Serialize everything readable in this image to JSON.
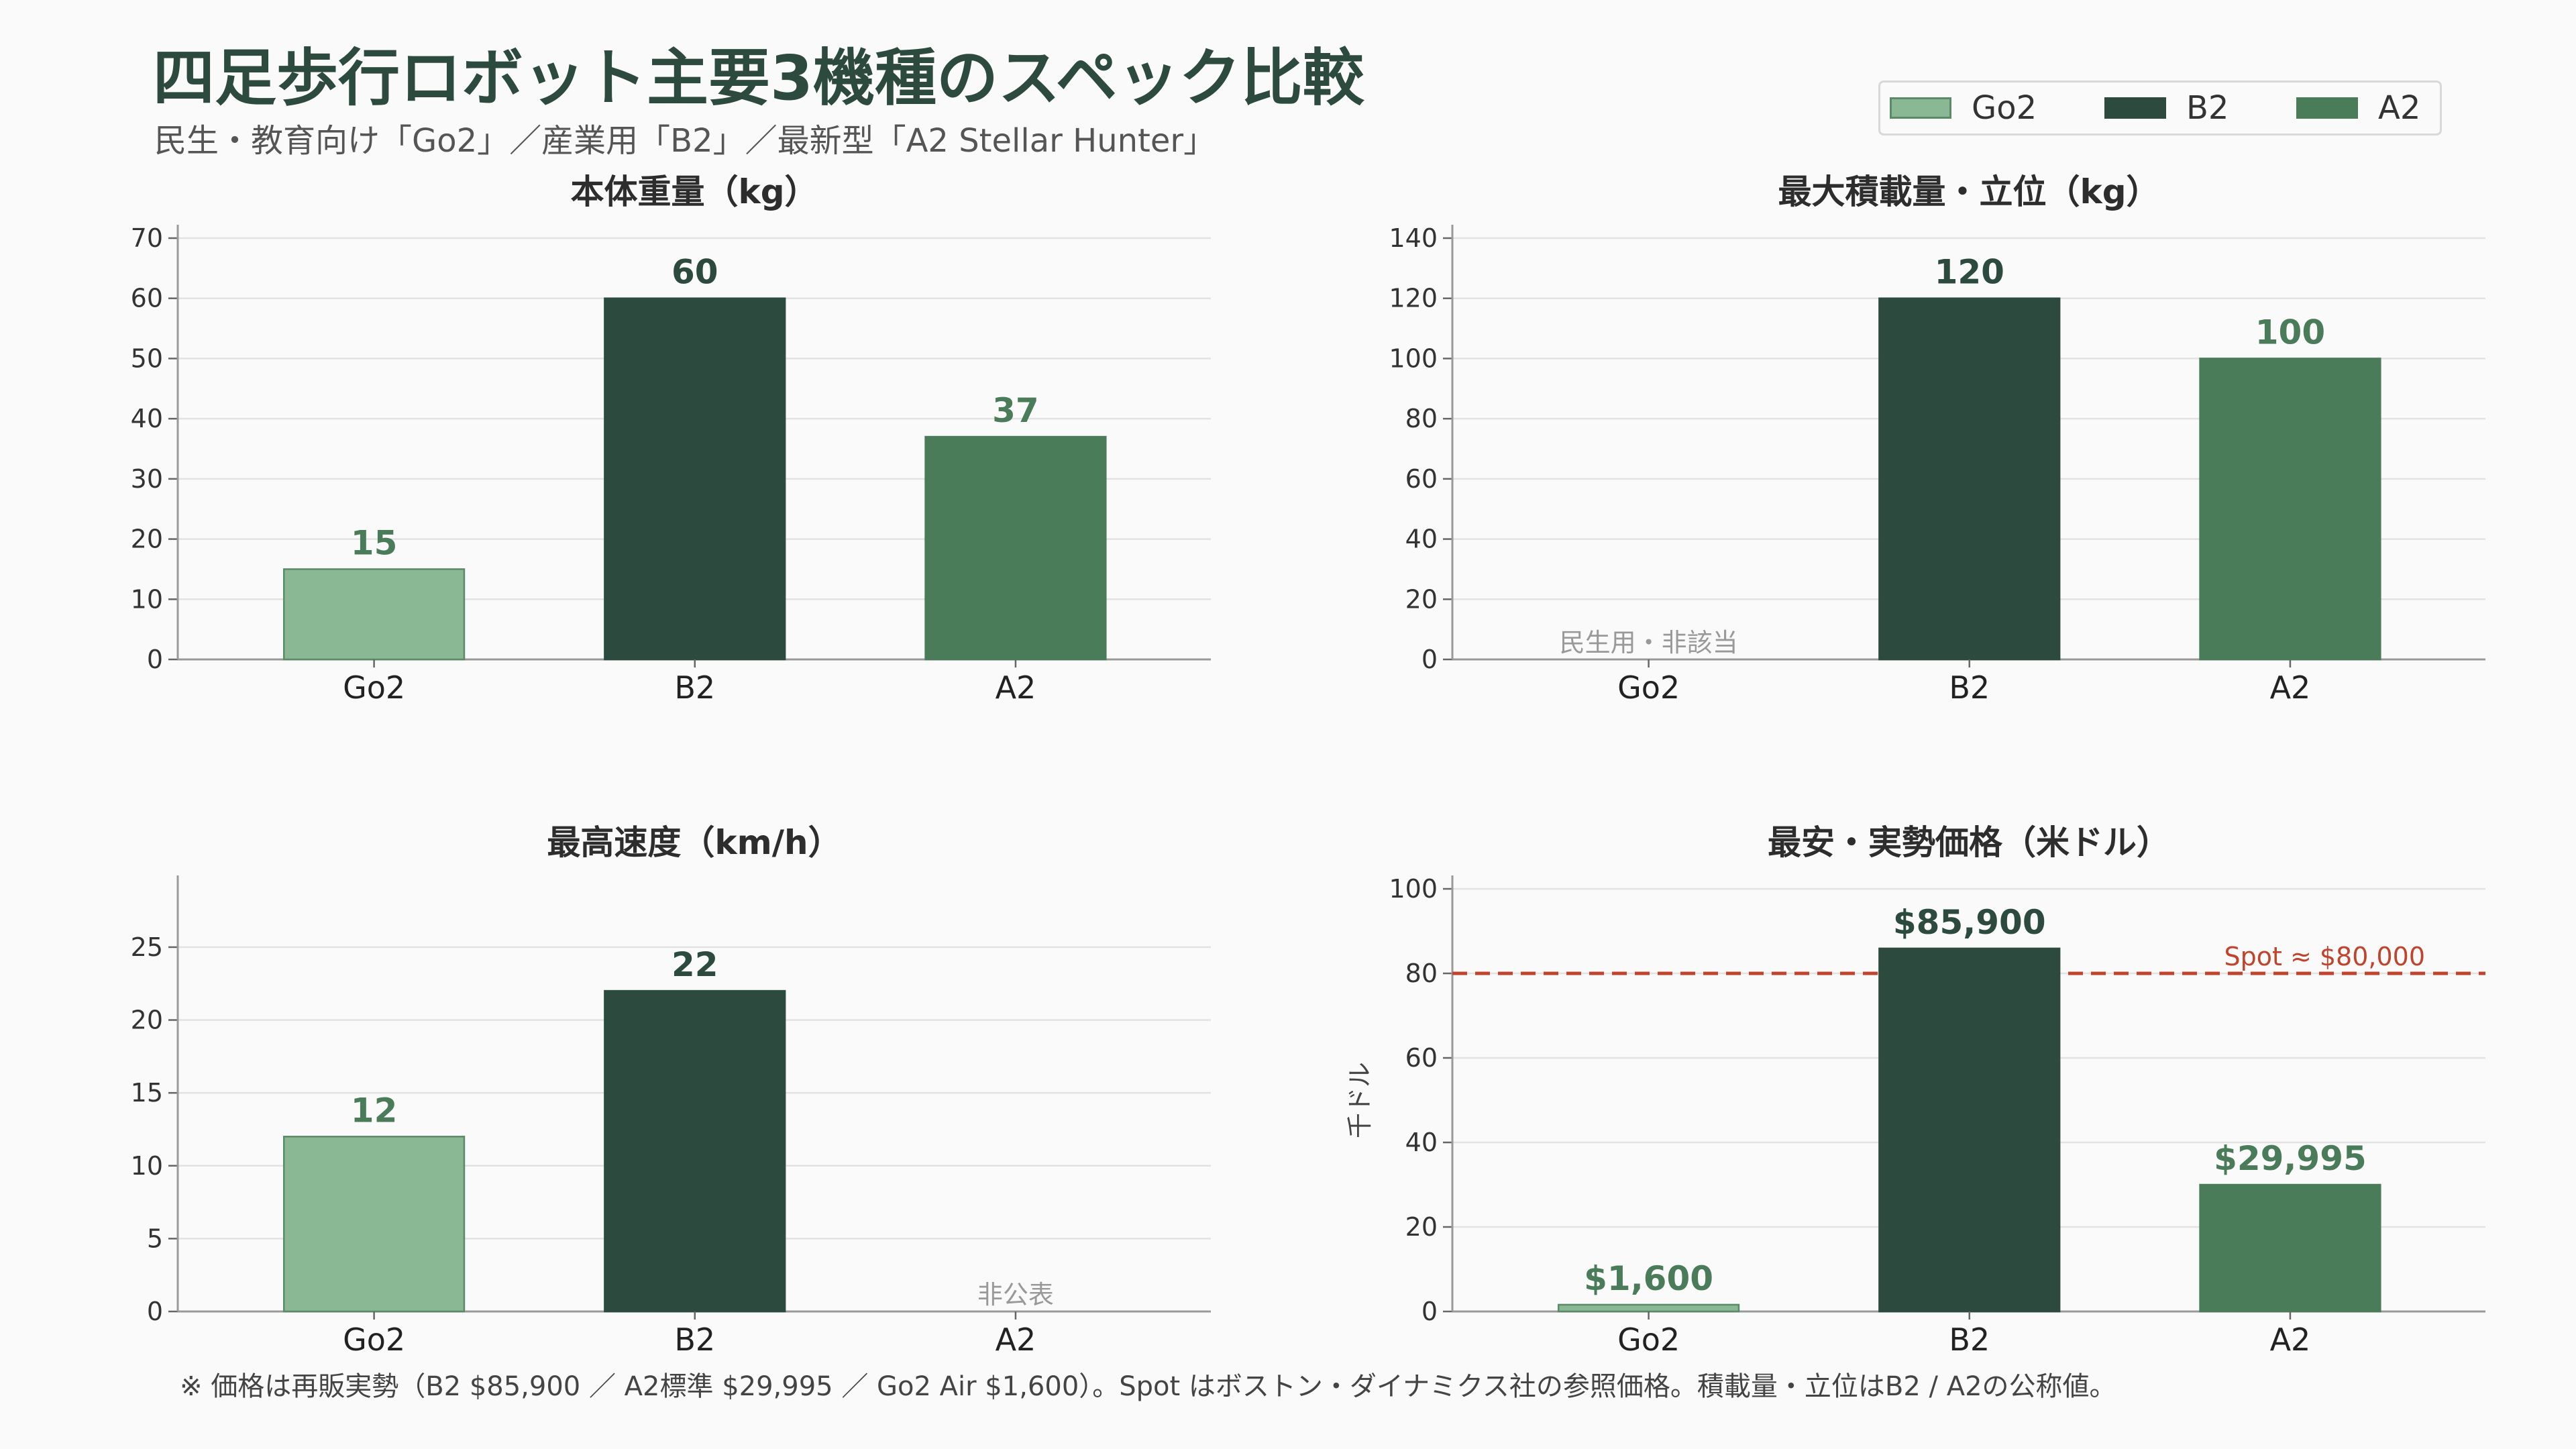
{
  "title": "四足歩行ロボット主要3機種のスペック比較",
  "subtitle": "民生・教育向け「Go2」／産業用「B2」／最新型「A2 Stellar Hunter」",
  "legend": [
    {
      "label": "Go2",
      "color": "#8ab894"
    },
    {
      "label": "B2",
      "color": "#2d4a3e"
    },
    {
      "label": "A2",
      "color": "#4a7c59"
    }
  ],
  "footnote": "※ 価格は再販実勢（B2 $85,900 ／ A2標準 $29,995 ／ Go2 Air $1,600）。Spot はボストン・ダイナミクス社の参照価格。積載量・立位はB2 / A2の公称値。",
  "chart_data": [
    {
      "type": "bar",
      "title": "本体重量（kg）",
      "categories": [
        "Go2",
        "B2",
        "A2"
      ],
      "values": [
        15,
        60,
        37
      ],
      "value_labels": [
        "15",
        "60",
        "37"
      ],
      "ylim": [
        0,
        70
      ],
      "yticks": [
        0,
        10,
        20,
        30,
        40,
        50,
        60,
        70
      ],
      "ylabel": "",
      "grid": true
    },
    {
      "type": "bar",
      "title": "最大積載量・立位（kg）",
      "categories": [
        "Go2",
        "B2",
        "A2"
      ],
      "values": [
        null,
        120,
        100
      ],
      "value_labels": [
        "",
        "120",
        "100"
      ],
      "na_labels": [
        "民生用・非該当",
        "",
        ""
      ],
      "ylim": [
        0,
        140
      ],
      "yticks": [
        0,
        20,
        40,
        60,
        80,
        100,
        120,
        140
      ],
      "ylabel": "",
      "grid": true
    },
    {
      "type": "bar",
      "title": "最高速度（km/h）",
      "categories": [
        "Go2",
        "B2",
        "A2"
      ],
      "values": [
        12,
        22,
        null
      ],
      "value_labels": [
        "12",
        "22",
        ""
      ],
      "na_labels": [
        "",
        "",
        "非公表"
      ],
      "ylim": [
        0,
        29
      ],
      "yticks": [
        0,
        5,
        10,
        15,
        20,
        25
      ],
      "ylabel": "",
      "grid": true
    },
    {
      "type": "bar",
      "title": "最安・実勢価格（米ドル）",
      "categories": [
        "Go2",
        "B2",
        "A2"
      ],
      "values": [
        1.6,
        85.9,
        29.995
      ],
      "value_labels": [
        "$1,600",
        "$85,900",
        "$29,995"
      ],
      "ylim": [
        0,
        100
      ],
      "yticks": [
        0,
        20,
        40,
        60,
        80,
        100
      ],
      "ylabel": "千ドル",
      "grid": true,
      "reference_line": {
        "value": 80,
        "label": "Spot ≈ $80,000",
        "color": "#c0442c"
      }
    }
  ]
}
